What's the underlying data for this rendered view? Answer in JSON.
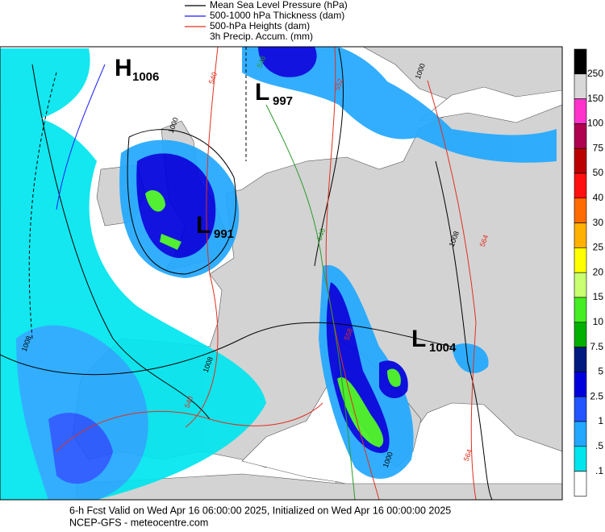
{
  "legend": [
    {
      "text": "Mean Sea Level Pressure (hPa)",
      "color": "#000000"
    },
    {
      "text": "500-1000 hPa Thickness (dam)",
      "color": "#1a1aff"
    },
    {
      "text": "500-hPa Heights (dam)",
      "color": "#e03020"
    },
    {
      "text": "3h Precip. Accum. (mm)",
      "color": null
    }
  ],
  "pressure_centers": [
    {
      "letter": "H",
      "value": "1006"
    },
    {
      "letter": "L",
      "value": "997"
    },
    {
      "letter": "L",
      "value": "991"
    },
    {
      "letter": "L",
      "value": "1004"
    }
  ],
  "contour_labels": [
    {
      "text": "540",
      "color": "#e03020"
    },
    {
      "text": "546",
      "color": "#2a9a2a"
    },
    {
      "text": "552",
      "color": "#e03020"
    },
    {
      "text": "1000",
      "color": "#000000"
    },
    {
      "text": "1000",
      "color": "#000000"
    },
    {
      "text": "546",
      "color": "#2a9a2a"
    },
    {
      "text": "1008",
      "color": "#000000"
    },
    {
      "text": "564",
      "color": "#e03020"
    },
    {
      "text": "1008",
      "color": "#000000"
    },
    {
      "text": "1008",
      "color": "#000000"
    },
    {
      "text": "540",
      "color": "#e03020"
    },
    {
      "text": "558",
      "color": "#e03020"
    },
    {
      "text": "1000",
      "color": "#000000"
    },
    {
      "text": "564",
      "color": "#e03020"
    }
  ],
  "colorbar": {
    "labels": [
      "250",
      "150",
      "100",
      "75",
      "50",
      "40",
      "30",
      "25",
      "20",
      "15",
      "10",
      "7.5",
      "5",
      "2.5",
      "1",
      ".5",
      ".1"
    ],
    "colors": [
      "#000000",
      "#d8d8d8",
      "#ff33cc",
      "#b00050",
      "#bb0000",
      "#ff1010",
      "#ff6a00",
      "#ffb000",
      "#ffff00",
      "#c8ff70",
      "#44ee22",
      "#00b000",
      "#001a80",
      "#0000dd",
      "#2255ff",
      "#22a8ff",
      "#00e5ee",
      "#ffffff"
    ]
  },
  "footer": [
    "6-h Fcst Valid on Wed Apr 16 06:00:00 2025, Initialized on Wed Apr 16 00:00:00 2025",
    "NCEP-GFS  - meteocentre.com"
  ]
}
